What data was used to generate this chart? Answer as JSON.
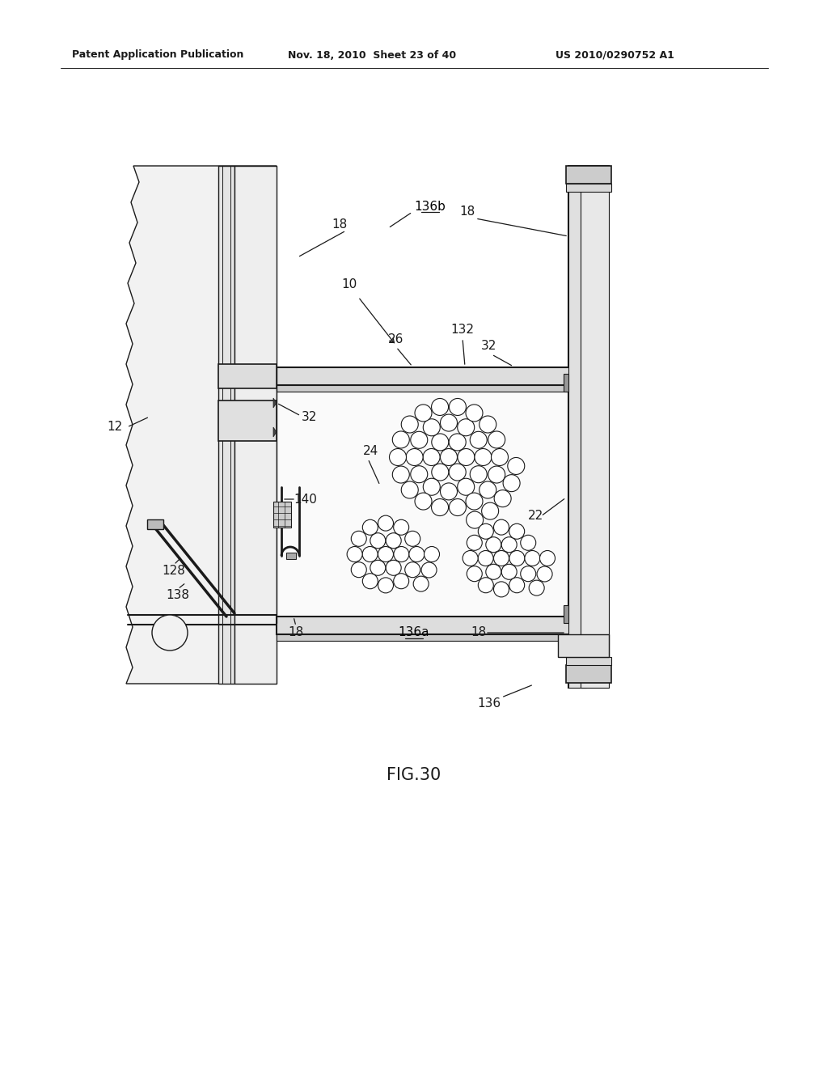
{
  "bg_color": "#ffffff",
  "header_left": "Patent Application Publication",
  "header_mid": "Nov. 18, 2010  Sheet 23 of 40",
  "header_right": "US 2010/0290752 A1",
  "fig_label": "FIG.30",
  "line_color": "#1a1a1a"
}
